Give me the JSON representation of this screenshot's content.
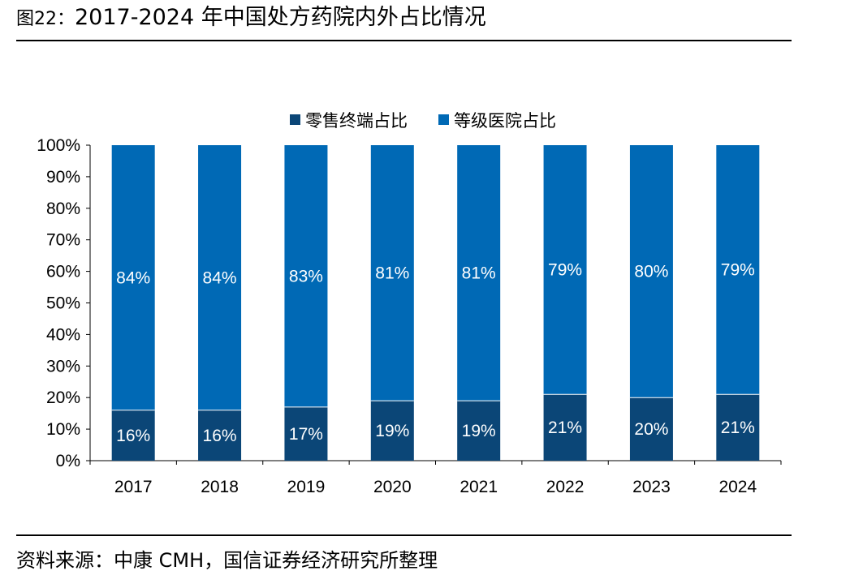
{
  "header": {
    "figure_label": "图22：",
    "title": "2017-2024 年中国处方药院内外占比情况"
  },
  "footer": {
    "source": "资料来源：中康 CMH，国信证券经济研究所整理"
  },
  "colors": {
    "retail": "#0b4677",
    "hospital": "#0069b5",
    "text": "#000000",
    "label_on_bar": "#ffffff"
  },
  "chart_data": {
    "type": "bar",
    "stacked": true,
    "categories": [
      "2017",
      "2018",
      "2019",
      "2020",
      "2021",
      "2022",
      "2023",
      "2024"
    ],
    "series": [
      {
        "name": "零售终端占比",
        "values": [
          16,
          16,
          17,
          19,
          19,
          21,
          20,
          21
        ],
        "labels": [
          "16%",
          "16%",
          "17%",
          "19%",
          "19%",
          "21%",
          "20%",
          "21%"
        ]
      },
      {
        "name": "等级医院占比",
        "values": [
          84,
          84,
          83,
          81,
          81,
          79,
          80,
          79
        ],
        "labels": [
          "84%",
          "84%",
          "83%",
          "81%",
          "81%",
          "79%",
          "80%",
          "79%"
        ]
      }
    ],
    "yticks": [
      "0%",
      "10%",
      "20%",
      "30%",
      "40%",
      "50%",
      "60%",
      "70%",
      "80%",
      "90%",
      "100%"
    ],
    "ylim": [
      0,
      100
    ],
    "legend_position": "top-center",
    "grid": false
  }
}
